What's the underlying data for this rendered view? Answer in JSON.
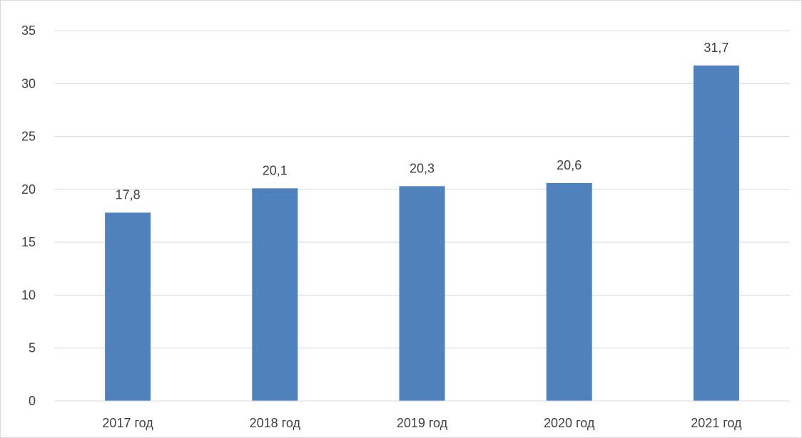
{
  "chart_data": {
    "type": "bar",
    "title": "",
    "xlabel": "",
    "ylabel": "",
    "categories": [
      "2017 год",
      "2018 год",
      "2019 год",
      "2020 год",
      "2021 год"
    ],
    "values": [
      17.8,
      20.1,
      20.3,
      20.6,
      31.7
    ],
    "value_labels": [
      "17,8",
      "20,1",
      "20,3",
      "20,6",
      "31,7"
    ],
    "ylim": [
      0,
      35
    ],
    "yticks": [
      0,
      5,
      10,
      15,
      20,
      25,
      30,
      35
    ],
    "ytick_labels": [
      "0",
      "5",
      "10",
      "15",
      "20",
      "25",
      "30",
      "35"
    ],
    "grid": true,
    "legend": "none",
    "colors": {
      "bar": "#4f81bd",
      "grid": "#d9d9d9",
      "text": "#404040"
    }
  }
}
